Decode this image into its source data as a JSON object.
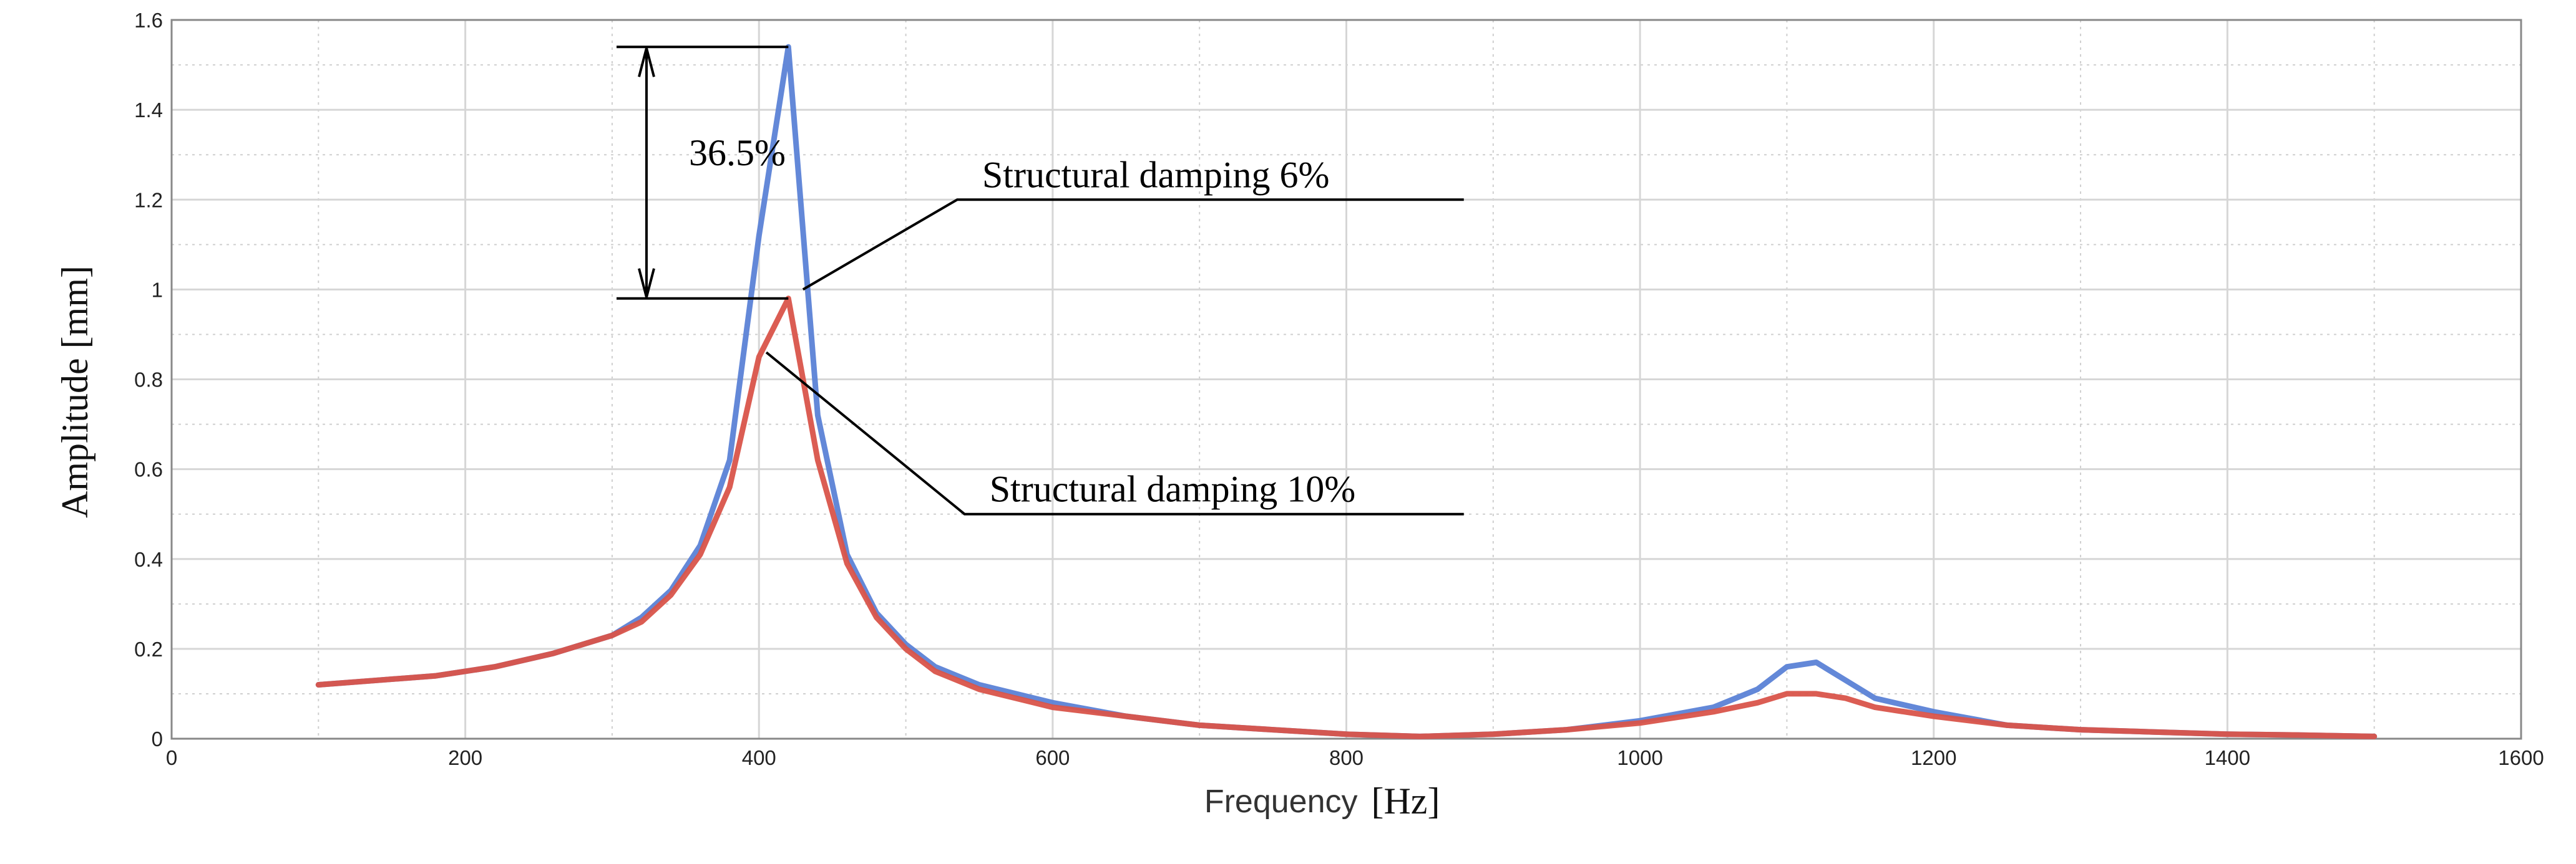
{
  "chart_data": {
    "type": "line",
    "title": "",
    "xlabel": "Frequency",
    "xlabel_unit": "[Hz]",
    "ylabel": "Amplitude [mm]",
    "xlim": [
      0,
      1600
    ],
    "ylim": [
      0,
      1.6
    ],
    "x_ticks": [
      0,
      200,
      400,
      600,
      800,
      1000,
      1200,
      1400,
      1600
    ],
    "y_ticks": [
      {
        "value": 0,
        "label": "0"
      },
      {
        "value": 0.2,
        "label": "0.2"
      },
      {
        "value": 0.4,
        "label": "0.4"
      },
      {
        "value": 0.6,
        "label": "0.6"
      },
      {
        "value": 0.8,
        "label": "0.8"
      },
      {
        "value": 1.0,
        "label": "1"
      },
      {
        "value": 1.2,
        "label": "1.2"
      },
      {
        "value": 1.4,
        "label": "1.4"
      },
      {
        "value": 1.6,
        "label": "1.6"
      }
    ],
    "grid": true,
    "series": [
      {
        "name": "Structural damping 6%",
        "color": "#5b82d6",
        "x": [
          100,
          140,
          180,
          220,
          260,
          300,
          320,
          340,
          360,
          380,
          400,
          420,
          440,
          460,
          480,
          500,
          520,
          550,
          600,
          650,
          700,
          750,
          800,
          850,
          900,
          950,
          1000,
          1050,
          1080,
          1100,
          1120,
          1140,
          1160,
          1200,
          1250,
          1300,
          1350,
          1400,
          1450,
          1500
        ],
        "values": [
          0.12,
          0.13,
          0.14,
          0.16,
          0.19,
          0.23,
          0.27,
          0.33,
          0.43,
          0.62,
          1.12,
          1.54,
          0.72,
          0.41,
          0.28,
          0.21,
          0.16,
          0.12,
          0.08,
          0.05,
          0.03,
          0.02,
          0.01,
          0.005,
          0.01,
          0.02,
          0.04,
          0.07,
          0.11,
          0.16,
          0.17,
          0.13,
          0.09,
          0.06,
          0.03,
          0.02,
          0.015,
          0.01,
          0.008,
          0.005
        ]
      },
      {
        "name": "Structural damping 10%",
        "color": "#d9544a",
        "x": [
          100,
          140,
          180,
          220,
          260,
          300,
          320,
          340,
          360,
          380,
          400,
          420,
          440,
          460,
          480,
          500,
          520,
          550,
          600,
          650,
          700,
          750,
          800,
          850,
          900,
          950,
          1000,
          1050,
          1080,
          1100,
          1120,
          1140,
          1160,
          1200,
          1250,
          1300,
          1350,
          1400,
          1450,
          1500
        ],
        "values": [
          0.12,
          0.13,
          0.14,
          0.16,
          0.19,
          0.23,
          0.26,
          0.32,
          0.41,
          0.56,
          0.85,
          0.98,
          0.62,
          0.39,
          0.27,
          0.2,
          0.15,
          0.11,
          0.07,
          0.05,
          0.03,
          0.02,
          0.01,
          0.005,
          0.01,
          0.02,
          0.035,
          0.06,
          0.08,
          0.1,
          0.1,
          0.09,
          0.07,
          0.05,
          0.03,
          0.02,
          0.015,
          0.01,
          0.008,
          0.005
        ]
      }
    ],
    "annotations": {
      "difference_label": "36.5%",
      "top_level": 1.54,
      "bottom_level": 0.98,
      "arrow_x": 320,
      "labels": [
        {
          "text": "Structural damping 6%",
          "series": 0,
          "point_x": 430,
          "point_y": 1.0,
          "elbow_x": 535,
          "elbow_y": 1.2,
          "end_x": 880
        },
        {
          "text": "Structural damping 10%",
          "series": 1,
          "point_x": 405,
          "point_y": 0.86,
          "elbow_x": 540,
          "elbow_y": 0.5,
          "end_x": 880
        }
      ]
    }
  }
}
